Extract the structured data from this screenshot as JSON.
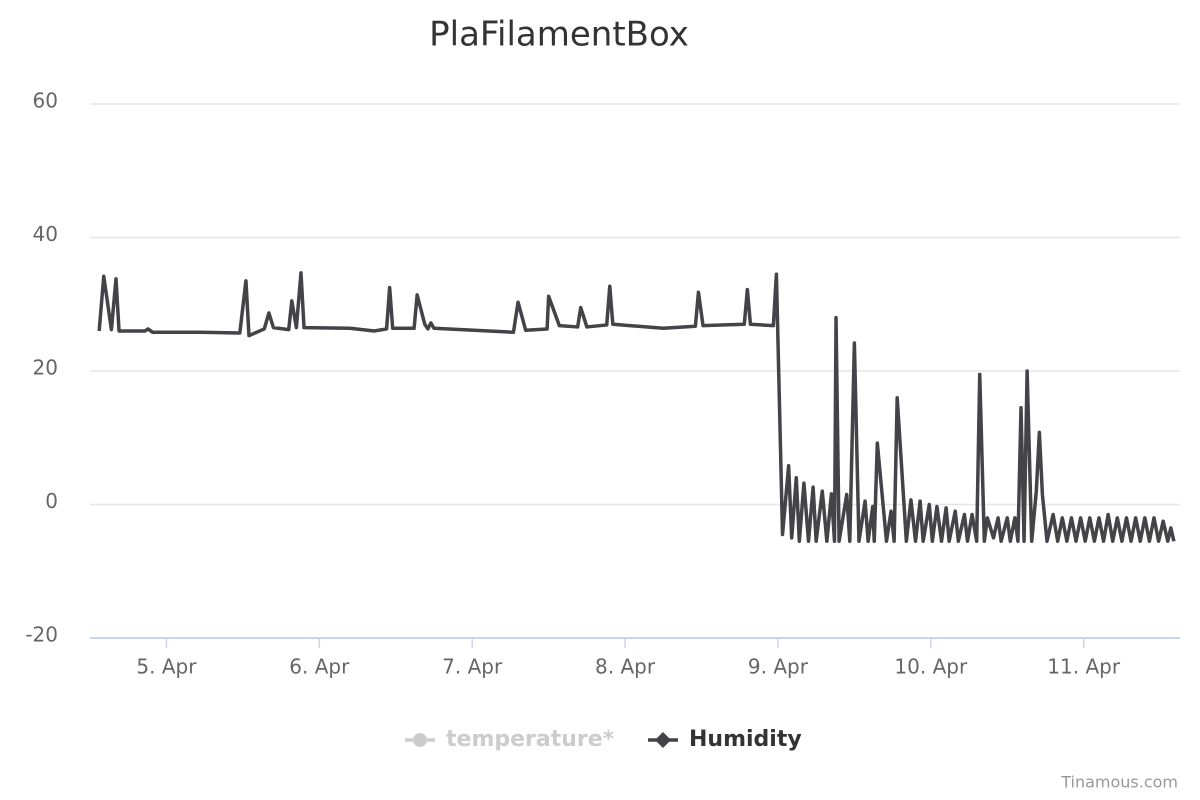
{
  "chart_data": {
    "type": "line",
    "title": "PlaFilamentBox",
    "credit": "Tinamous.com",
    "xlim": [
      4.5,
      11.63
    ],
    "xticks": [
      {
        "value": 5,
        "label": "5. Apr"
      },
      {
        "value": 6,
        "label": "6. Apr"
      },
      {
        "value": 7,
        "label": "7. Apr"
      },
      {
        "value": 8,
        "label": "8. Apr"
      },
      {
        "value": 9,
        "label": "9. Apr"
      },
      {
        "value": 10,
        "label": "10. Apr"
      },
      {
        "value": 11,
        "label": "11. Apr"
      }
    ],
    "ylim": [
      -20,
      60
    ],
    "yticks": [
      -20,
      0,
      20,
      40,
      60
    ],
    "grid": true,
    "legend": "bottom",
    "series": [
      {
        "name": "temperature*",
        "color": "#cccccc",
        "marker": "circle",
        "visible": false,
        "x": [],
        "values": []
      },
      {
        "name": "Humidity",
        "color": "#434348",
        "marker": "diamond",
        "visible": true,
        "x": [
          4.56,
          4.59,
          4.64,
          4.67,
          4.69,
          4.86,
          4.88,
          4.91,
          5.22,
          5.48,
          5.52,
          5.54,
          5.64,
          5.67,
          5.7,
          5.8,
          5.82,
          5.85,
          5.88,
          5.9,
          6.2,
          6.36,
          6.44,
          6.46,
          6.48,
          6.62,
          6.64,
          6.69,
          6.71,
          6.73,
          6.75,
          7.27,
          7.3,
          7.35,
          7.49,
          7.5,
          7.57,
          7.69,
          7.71,
          7.75,
          7.88,
          7.9,
          7.92,
          8.25,
          8.46,
          8.48,
          8.51,
          8.78,
          8.8,
          8.82,
          8.97,
          8.99,
          9.03,
          9.07,
          9.09,
          9.12,
          9.14,
          9.17,
          9.2,
          9.23,
          9.25,
          9.29,
          9.32,
          9.35,
          9.37,
          9.38,
          9.4,
          9.45,
          9.47,
          9.5,
          9.53,
          9.57,
          9.59,
          9.62,
          9.63,
          9.65,
          9.71,
          9.74,
          9.76,
          9.78,
          9.84,
          9.87,
          9.9,
          9.93,
          9.95,
          9.99,
          10.01,
          10.04,
          10.07,
          10.1,
          10.12,
          10.16,
          10.18,
          10.22,
          10.24,
          10.27,
          10.3,
          10.32,
          10.35,
          10.37,
          10.41,
          10.44,
          10.46,
          10.5,
          10.52,
          10.55,
          10.57,
          10.59,
          10.61,
          10.63,
          10.66,
          10.69,
          10.71,
          10.73,
          10.76,
          10.8,
          10.83,
          10.86,
          10.89,
          10.92,
          10.95,
          10.98,
          11.01,
          11.04,
          11.07,
          11.1,
          11.13,
          11.16,
          11.19,
          11.22,
          11.25,
          11.28,
          11.31,
          11.34,
          11.37,
          11.4,
          11.43,
          11.46,
          11.49,
          11.52,
          11.55,
          11.57,
          11.59
        ],
        "values": [
          26,
          34.2,
          26.2,
          33.8,
          26,
          26,
          26.3,
          25.8,
          25.8,
          25.7,
          33.5,
          25.3,
          26.3,
          28.7,
          26.5,
          26.2,
          30.5,
          26.5,
          34.7,
          26.5,
          26.4,
          26.0,
          26.3,
          32.5,
          26.4,
          26.4,
          31.4,
          27,
          26.3,
          27.2,
          26.4,
          25.8,
          30.3,
          26.1,
          26.3,
          31.2,
          26.8,
          26.6,
          29.5,
          26.6,
          26.9,
          32.7,
          27,
          26.4,
          26.7,
          31.8,
          26.8,
          27,
          32.2,
          27,
          26.8,
          34.5,
          -4.5,
          5.8,
          -5,
          4,
          -5.5,
          3.2,
          -5.5,
          2.6,
          -5.5,
          2,
          -5.5,
          1.6,
          -5.5,
          28,
          -5.5,
          1.5,
          -5.5,
          24.2,
          -5.5,
          0.5,
          -5.5,
          -0.3,
          -5.5,
          9.2,
          -5.5,
          -1,
          -5.5,
          16,
          -5.5,
          0.7,
          -5.5,
          0.5,
          -5.5,
          0,
          -5.5,
          -0.3,
          -5.5,
          -0.5,
          -5.5,
          -1,
          -5.5,
          -1.5,
          -5.5,
          -1.5,
          -5.5,
          19.5,
          -5.5,
          -2,
          -5,
          -2,
          -5.5,
          -2,
          -5.5,
          -2,
          -5.5,
          14.5,
          -5.5,
          20,
          -5.5,
          2,
          10.8,
          1.5,
          -5.5,
          -1.5,
          -5.5,
          -2,
          -5.5,
          -2,
          -5.5,
          -2,
          -5.5,
          -2,
          -5.5,
          -2,
          -5.5,
          -1.5,
          -5.5,
          -2,
          -5.5,
          -2,
          -5.5,
          -2,
          -5.5,
          -2,
          -5.5,
          -2,
          -5.5,
          -2.5,
          -5.5,
          -3.5,
          -5.5
        ]
      }
    ]
  }
}
